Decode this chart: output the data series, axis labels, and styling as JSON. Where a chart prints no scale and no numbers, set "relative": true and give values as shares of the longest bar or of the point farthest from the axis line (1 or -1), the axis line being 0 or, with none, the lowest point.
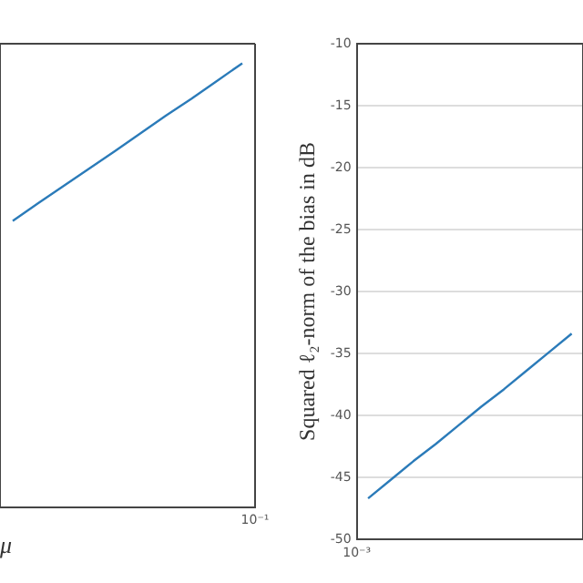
{
  "chart_data": [
    {
      "type": "line",
      "xlabel": "μ",
      "relative": true,
      "tick_labels": false,
      "categories": [
        null,
        null,
        null,
        null,
        null,
        null,
        null,
        null,
        null,
        null
      ],
      "annotations": [
        "10⁻¹"
      ],
      "series": [
        {
          "color": "#2b7bb9",
          "values": [
            0.645,
            0.685,
            0.724,
            0.763,
            0.802,
            0.842,
            0.882,
            0.92,
            0.96,
            1
          ]
        }
      ]
    },
    {
      "type": "line",
      "ylabel": "Squared ℓ₂-norm of the bias in dB",
      "tick_labels": "y",
      "grid": "y",
      "categories": [
        null,
        null,
        null,
        null,
        null,
        null,
        null,
        null,
        null,
        null
      ],
      "annotations": [
        "10⁻³"
      ],
      "series": [
        {
          "color": "#2b7bb9",
          "values": [
            -46.7,
            -45.2,
            -43.7,
            -42.3,
            -40.8,
            -39.3,
            -37.9,
            -36.4,
            -34.9,
            -33.4
          ]
        }
      ],
      "ylim": [
        -50,
        -10
      ],
      "yticks": [
        -50,
        -45,
        -40,
        -35,
        -30,
        -25,
        -20,
        -15,
        -10
      ]
    }
  ]
}
